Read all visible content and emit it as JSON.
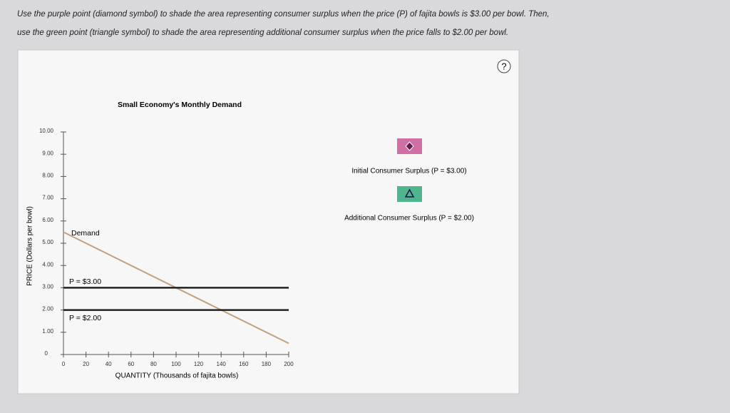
{
  "instructions": [
    "Use the purple point (diamond symbol) to shade the area representing consumer surplus when the price (P) of fajita bowls is $3.00 per bowl. Then,",
    "use the green point (triangle symbol) to shade the area representing additional consumer surplus when the price falls to $2.00 per bowl."
  ],
  "help": "?",
  "tools": [
    {
      "label": "Initial Consumer Surplus (P = $3.00)"
    },
    {
      "label": "Additional Consumer Surplus (P = $2.00)"
    }
  ],
  "chart_data": {
    "type": "line",
    "title": "Small Economy's Monthly Demand",
    "x_label": "QUANTITY (Thousands of fajita bowls)",
    "y_label": "PRICE (Dollars per bowl)",
    "xlim": [
      0,
      200
    ],
    "xticks": [
      0,
      20,
      40,
      60,
      80,
      100,
      120,
      140,
      160,
      180,
      200
    ],
    "ylim": [
      0,
      10
    ],
    "yticks": [
      0,
      {
        "value": 1,
        "label": "1.00"
      },
      {
        "value": 2,
        "label": "2.00"
      },
      {
        "value": 3,
        "label": "3.00"
      },
      {
        "value": 4,
        "label": "4.00"
      },
      {
        "value": 5,
        "label": "5.00"
      },
      {
        "value": 6,
        "label": "6.00"
      },
      {
        "value": 7,
        "label": "7.00"
      },
      {
        "value": 8,
        "label": "8.00"
      },
      {
        "value": 9,
        "label": "9.00"
      },
      {
        "value": 10,
        "label": "10.00"
      }
    ],
    "series": [
      {
        "name": "Demand",
        "color": "#c4a07e",
        "x": [
          0,
          200
        ],
        "values": [
          5.5,
          0.5
        ]
      },
      {
        "name": "P = $3.00",
        "color": "#222222",
        "x": [
          0,
          200
        ],
        "values": [
          3,
          3
        ]
      },
      {
        "name": "P = $2.00",
        "color": "#222222",
        "x": [
          0,
          200
        ],
        "values": [
          2,
          2
        ]
      }
    ]
  }
}
